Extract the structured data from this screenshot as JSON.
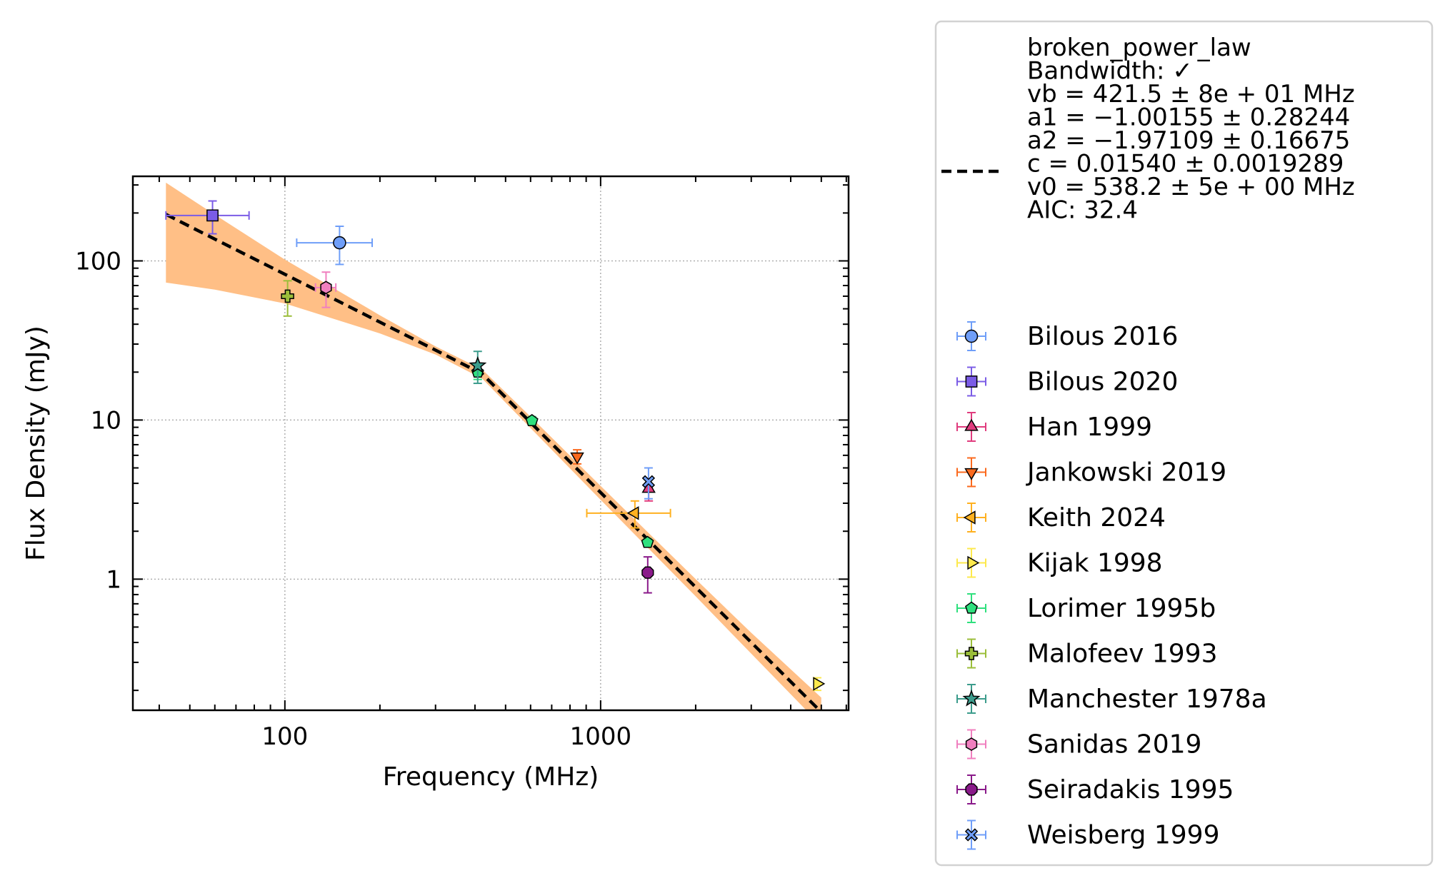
{
  "chart_data": {
    "type": "scatter",
    "title": "",
    "xlabel": "Frequency (MHz)",
    "ylabel": "Flux Density (mJy)",
    "xscale": "log",
    "yscale": "log",
    "xlim": [
      33,
      6100
    ],
    "ylim": [
      0.15,
      340
    ],
    "grid": true,
    "legend_position": "right, outside plot",
    "x_tick_labels": [
      {
        "value": 100,
        "label": "100"
      },
      {
        "value": 1000,
        "label": "1000"
      }
    ],
    "y_tick_labels": [
      {
        "value": 1,
        "label": "1"
      },
      {
        "value": 10,
        "label": "10"
      },
      {
        "value": 100,
        "label": "100"
      }
    ],
    "fit": {
      "legend_lines": [
        "broken_power_law",
        "Bandwidth: ✓",
        "vb = 421.5 ± 8e + 01 MHz",
        "a1 = −1.00155 ± 0.28244",
        "a2 = −1.97109 ± 0.16675",
        "c = 0.01540 ± 0.0019289",
        "v0 = 538.2 ± 5e + 00 MHz",
        "AIC: 32.4"
      ],
      "color": "#000000",
      "band_color": "#ffbf86",
      "x": [
        42,
        60,
        100,
        200,
        300,
        421.5,
        600,
        1000,
        2000,
        3000,
        5000
      ],
      "y": [
        196,
        137,
        82.4,
        41.2,
        27.5,
        19.5,
        9.66,
        3.5,
        0.89,
        0.4,
        0.146
      ],
      "band_upper": [
        310,
        195,
        102,
        45.5,
        29.0,
        20.8,
        10.5,
        3.85,
        1.0,
        0.46,
        0.18
      ],
      "band_lower": [
        73,
        66,
        54,
        35,
        25.8,
        18.2,
        8.9,
        3.15,
        0.78,
        0.34,
        0.12
      ]
    },
    "series": [
      {
        "name": "Bilous 2016",
        "marker": "circle",
        "color": "#6f9ef8",
        "points": [
          {
            "x": 149,
            "y": 130,
            "xerr": [
              40,
              40
            ],
            "yerr": [
              35,
              35
            ]
          }
        ]
      },
      {
        "name": "Bilous 2020",
        "marker": "square",
        "color": "#7b5ce6",
        "points": [
          {
            "x": 59,
            "y": 193,
            "xerr": [
              17,
              18
            ],
            "yerr": [
              45,
              45
            ]
          }
        ]
      },
      {
        "name": "Han 1999",
        "marker": "triangle-up",
        "color": "#e03c7e",
        "points": [
          {
            "x": 1420,
            "y": 3.7,
            "xerr": [
              0,
              0
            ],
            "yerr": [
              0.6,
              0.6
            ]
          }
        ]
      },
      {
        "name": "Jankowski 2019",
        "marker": "triangle-down",
        "color": "#fb6a1e",
        "points": [
          {
            "x": 843,
            "y": 5.9,
            "xerr": [
              0,
              0
            ],
            "yerr": [
              0.6,
              0.6
            ]
          }
        ]
      },
      {
        "name": "Keith 2024",
        "marker": "triangle-left",
        "color": "#ffb120",
        "points": [
          {
            "x": 1284,
            "y": 2.6,
            "xerr": [
              380,
              380
            ],
            "yerr": [
              0.5,
              0.5
            ]
          }
        ]
      },
      {
        "name": "Kijak 1998",
        "marker": "triangle-right",
        "color": "#fde94d",
        "points": [
          {
            "x": 4850,
            "y": 0.22,
            "xerr": [
              0,
              0
            ],
            "yerr": [
              0.02,
              0.02
            ]
          }
        ]
      },
      {
        "name": "Lorimer 1995b",
        "marker": "pentagon",
        "color": "#2fe07e",
        "points": [
          {
            "x": 408,
            "y": 20,
            "xerr": [
              0,
              0
            ],
            "yerr": [
              2,
              2
            ]
          },
          {
            "x": 606,
            "y": 9.9,
            "xerr": [
              0,
              0
            ],
            "yerr": [
              0.6,
              0.6
            ]
          },
          {
            "x": 1408,
            "y": 1.7,
            "xerr": [
              0,
              0
            ],
            "yerr": [
              0.1,
              0.1
            ]
          }
        ]
      },
      {
        "name": "Malofeev 1993",
        "marker": "plus",
        "color": "#9bbe3a",
        "points": [
          {
            "x": 102,
            "y": 60,
            "xerr": [
              0,
              0
            ],
            "yerr": [
              15,
              15
            ]
          }
        ]
      },
      {
        "name": "Manchester 1978a",
        "marker": "star",
        "color": "#3c9c8c",
        "points": [
          {
            "x": 408,
            "y": 22,
            "xerr": [
              0,
              0
            ],
            "yerr": [
              5,
              5
            ]
          }
        ]
      },
      {
        "name": "Sanidas 2019",
        "marker": "hexagon",
        "color": "#f07fbf",
        "points": [
          {
            "x": 135,
            "y": 68,
            "xerr": [
              10,
              10
            ],
            "yerr": [
              17,
              17
            ]
          }
        ]
      },
      {
        "name": "Seiradakis 1995",
        "marker": "octagon",
        "color": "#8a1a8a",
        "points": [
          {
            "x": 1410,
            "y": 1.1,
            "xerr": [
              0,
              0
            ],
            "yerr": [
              0.28,
              0.28
            ]
          }
        ]
      },
      {
        "name": "Weisberg 1999",
        "marker": "x",
        "color": "#6f9ef8",
        "points": [
          {
            "x": 1418,
            "y": 4.1,
            "xerr": [
              0,
              0
            ],
            "yerr": [
              0.9,
              0.9
            ]
          }
        ]
      }
    ]
  }
}
